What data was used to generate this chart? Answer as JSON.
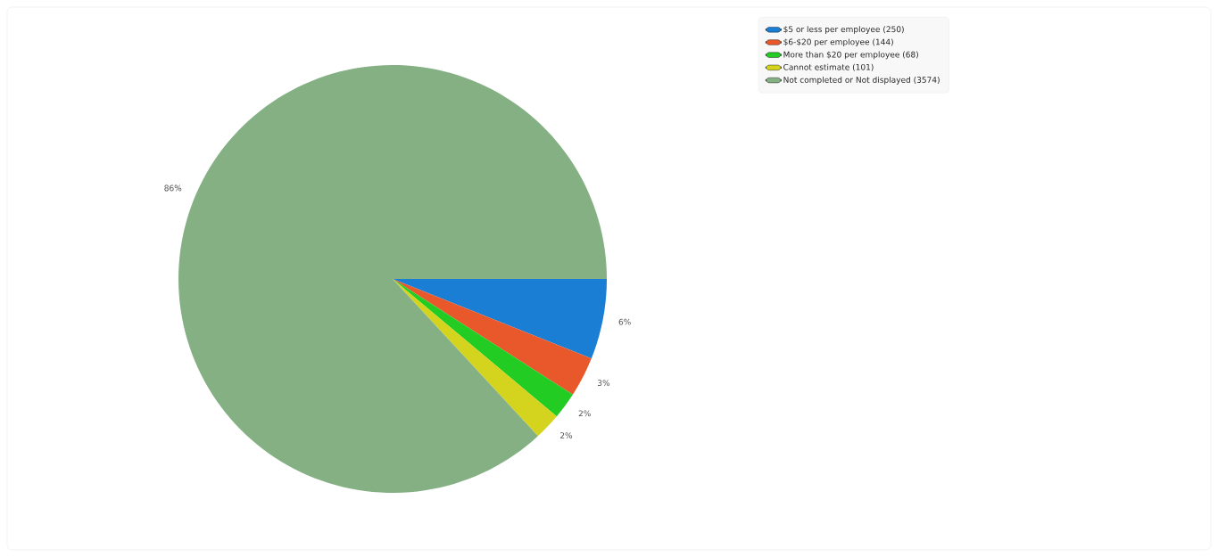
{
  "chart_data": {
    "type": "pie",
    "categories": [
      "$5 or less per employee (250)",
      "$6-$20 per employee (144)",
      "More than $20 per employee (68)",
      "Cannot estimate (101)",
      "Not completed or Not displayed (3574)"
    ],
    "values": [
      6,
      3,
      2,
      2,
      86
    ],
    "value_labels": [
      "6%",
      "3%",
      "2%",
      "2%",
      "86%"
    ],
    "colors": [
      "#1a7fd4",
      "#e8582a",
      "#22cc22",
      "#d4d41e",
      "#84b084"
    ],
    "legend": "top right"
  }
}
